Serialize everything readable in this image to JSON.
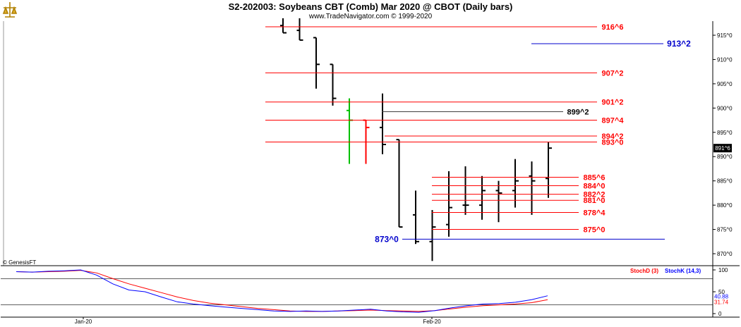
{
  "header": {
    "title": "S2-202003:  Soybeans CBT (Comb) Mar 2020 @ CBOT  (Daily bars)",
    "subtitle": "www.TradeNavigator.com © 1999-2020",
    "copyright": "© GenesisFT"
  },
  "colors": {
    "up_bar": "#00c000",
    "down_bar": "#ff0000",
    "bar": "#000000",
    "level_line": "#ff0000",
    "level_text": "#ff0000",
    "blue_level": "#0000cc",
    "gray_level": "#404040",
    "stochK": "#0000ff",
    "stochD": "#ff0000"
  },
  "chart_data": [
    {
      "type": "ohlc",
      "title": "S2-202003:  Soybeans CBT (Comb) Mar 2020 @ CBOT  (Daily bars)",
      "y_ticks": [
        "915^0",
        "910^0",
        "905^0",
        "900^0",
        "895^0",
        "890^0",
        "885^0",
        "880^0",
        "875^0",
        "870^0"
      ],
      "ylim": [
        867.5,
        918.5
      ],
      "x_labels": [
        "Jan-20",
        "Feb-20"
      ],
      "last_price_label": "891^6",
      "bars": [
        {
          "o": 917.0,
          "h": 918.5,
          "l": 915.5,
          "c": 915.5,
          "color": "black"
        },
        {
          "o": 916.0,
          "h": 918.5,
          "l": 914.0,
          "c": 914.0,
          "color": "black"
        },
        {
          "o": 914.5,
          "h": 914.5,
          "l": 904.0,
          "c": 909.0,
          "color": "black"
        },
        {
          "o": 909.0,
          "h": 909.0,
          "l": 900.5,
          "c": 902.0,
          "color": "black"
        },
        {
          "o": 899.5,
          "h": 902.0,
          "l": 888.5,
          "c": 897.5,
          "color": "green"
        },
        {
          "o": 897.5,
          "h": 897.5,
          "l": 888.5,
          "c": 896.0,
          "color": "red"
        },
        {
          "o": 896.0,
          "h": 903.0,
          "l": 890.5,
          "c": 892.5,
          "color": "black"
        },
        {
          "o": 893.5,
          "h": 893.5,
          "l": 875.5,
          "c": 875.5,
          "color": "black"
        },
        {
          "o": 878.0,
          "h": 883.0,
          "l": 872.0,
          "c": 872.5,
          "color": "black"
        },
        {
          "o": 872.5,
          "h": 879.0,
          "l": 868.5,
          "c": 875.5,
          "color": "black"
        },
        {
          "o": 876.0,
          "h": 887.0,
          "l": 873.5,
          "c": 879.5,
          "color": "black"
        },
        {
          "o": 880.0,
          "h": 888.0,
          "l": 878.0,
          "c": 880.0,
          "color": "black"
        },
        {
          "o": 880.0,
          "h": 886.0,
          "l": 877.0,
          "c": 883.0,
          "color": "black"
        },
        {
          "o": 883.0,
          "h": 885.0,
          "l": 876.5,
          "c": 882.5,
          "color": "black"
        },
        {
          "o": 883.0,
          "h": 889.5,
          "l": 879.5,
          "c": 885.0,
          "color": "black"
        },
        {
          "o": 886.0,
          "h": 889.0,
          "l": 878.0,
          "c": 885.0,
          "color": "black"
        },
        {
          "o": 885.5,
          "h": 893.0,
          "l": 881.5,
          "c": 891.75,
          "color": "black"
        }
      ],
      "levels": [
        {
          "label": "916^6",
          "value": 916.75,
          "color": "red"
        },
        {
          "label": "913^2",
          "value": 913.25,
          "color": "blue"
        },
        {
          "label": "907^2",
          "value": 907.25,
          "color": "red"
        },
        {
          "label": "901^2",
          "value": 901.25,
          "color": "red"
        },
        {
          "label": "899^2",
          "value": 899.25,
          "color": "gray"
        },
        {
          "label": "897^4",
          "value": 897.5,
          "color": "red"
        },
        {
          "label": "894^2",
          "value": 894.25,
          "color": "red"
        },
        {
          "label": "893^0",
          "value": 893.0,
          "color": "red"
        },
        {
          "label": "885^6",
          "value": 885.75,
          "color": "red"
        },
        {
          "label": "884^0",
          "value": 884.0,
          "color": "red"
        },
        {
          "label": "882^2",
          "value": 882.25,
          "color": "red"
        },
        {
          "label": "881^0",
          "value": 881.0,
          "color": "red"
        },
        {
          "label": "878^4",
          "value": 878.5,
          "color": "red"
        },
        {
          "label": "875^0",
          "value": 875.0,
          "color": "red"
        },
        {
          "label": "873^0",
          "value": 873.0,
          "color": "blue"
        }
      ]
    },
    {
      "type": "line",
      "title": "Stochastic",
      "y_ticks": [
        "100",
        "50",
        "0"
      ],
      "ylim": [
        0,
        100
      ],
      "right_labels": [
        "40.88",
        "31.74"
      ],
      "series": [
        {
          "name": "StochD (3)",
          "color": "red",
          "values": [
            96,
            95,
            96,
            97,
            99,
            93,
            80,
            68,
            58,
            48,
            38,
            30,
            24,
            20,
            16,
            12,
            9,
            6,
            5,
            5,
            6,
            7,
            8,
            7,
            6,
            5,
            7,
            11,
            15,
            18,
            20,
            22,
            25,
            31.74
          ]
        },
        {
          "name": "StochK (14,3)",
          "color": "blue",
          "values": [
            96,
            95,
            97,
            98,
            100,
            88,
            68,
            54,
            50,
            38,
            27,
            22,
            18,
            15,
            12,
            9,
            6,
            5,
            6,
            5,
            6,
            8,
            10,
            6,
            4,
            3,
            7,
            13,
            18,
            22,
            23,
            26,
            32,
            40.88
          ]
        }
      ]
    }
  ]
}
